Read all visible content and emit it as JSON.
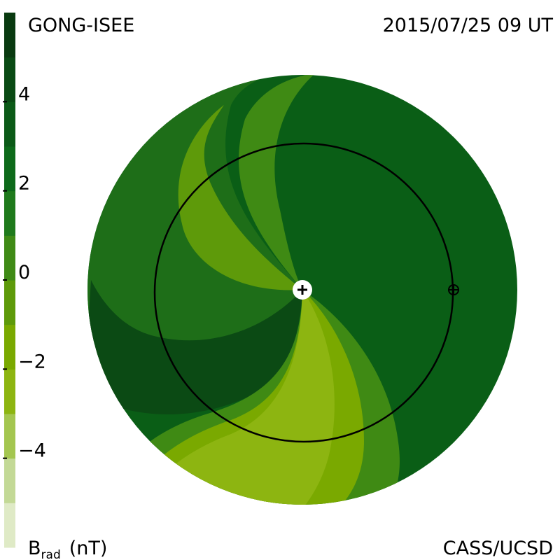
{
  "header": {
    "title": "GONG-ISEE",
    "date": "2015/07/25 09 UT"
  },
  "footer": {
    "credit": "CASS/UCSD"
  },
  "colorbar": {
    "label": "B",
    "label_sub": "rad",
    "unit": "(nT)",
    "range": [
      -6,
      6
    ],
    "ticks": [
      {
        "value": -4,
        "label": "−4"
      },
      {
        "value": -2,
        "label": "−2"
      },
      0,
      2,
      4
    ],
    "colors": [
      "#dfeac6",
      "#c3d996",
      "#a4c650",
      "#8db511",
      "#7aa900",
      "#5e9a0a",
      "#3f8a16",
      "#1f7a1c",
      "#0d6a1a",
      "#0b5a17",
      "#0a4a14",
      "#093a10"
    ]
  }
}
